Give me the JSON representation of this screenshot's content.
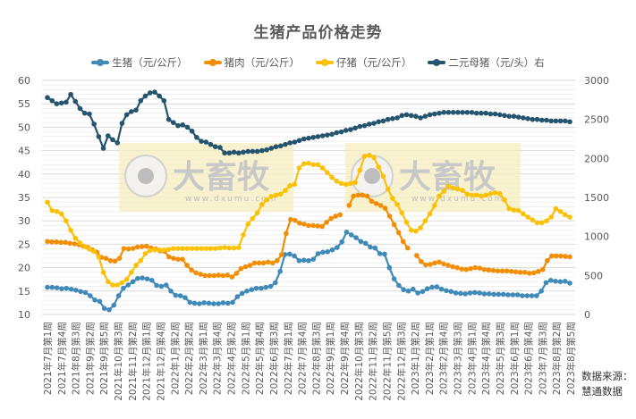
{
  "chart_data": {
    "type": "line",
    "title": "生猪产品价格走势",
    "xlabel": "",
    "ylabel": "",
    "y2label": "",
    "ylim": [
      10,
      60
    ],
    "y2lim": [
      0,
      3000
    ],
    "yticks": [
      10,
      15,
      20,
      25,
      30,
      35,
      40,
      45,
      50,
      55,
      60
    ],
    "y2ticks": [
      0,
      500,
      1000,
      1500,
      2000,
      2500,
      3000
    ],
    "grid": true,
    "legend_position": "top",
    "categories": [
      "2021年7月第1周",
      "2021年7月第4周",
      "2021年8月第3周",
      "2021年9月第2周",
      "2021年9月第5周",
      "2021年10月第3周",
      "2021年11月第2周",
      "2021年12月第1周",
      "2021年12月第4周",
      "2022年1月第2周",
      "2022年2月第2周",
      "2022年3月第1周",
      "2022年3月第4周",
      "2022年4月第2周",
      "2022年5月第1周",
      "2022年5月第4周",
      "2022年6月第3周",
      "2022年7月第1周",
      "2022年7月第4周",
      "2022年8月第3周",
      "2022年9月第1周",
      "2022年9月第4周",
      "2022年10月第3周",
      "2022年11月第2周",
      "2022年11月第5周",
      "2022年12月第3周",
      "2023年1月第2周",
      "2023年2月第1周",
      "2023年2月第4周",
      "2023年3月第3周",
      "2023年4月第1周",
      "2023年4月第4周",
      "2023年5月第3周",
      "2023年6月第1周",
      "2023年6月第4周",
      "2023年7月第3周",
      "2023年8月第2周",
      "2023年8月第5周"
    ],
    "series": [
      {
        "name": "生猪（元/公斤）",
        "axis": "left",
        "color": "#3f8ab8",
        "values": [
          15.8,
          15.8,
          15.7,
          15.5,
          15.6,
          15.4,
          15.2,
          14.9,
          14.7,
          14.0,
          13.1,
          12.8,
          11.3,
          11.0,
          12.0,
          14.0,
          15.6,
          16.3,
          17.0,
          17.7,
          17.8,
          17.6,
          17.3,
          16.2,
          16.0,
          16.3,
          15.0,
          14.1,
          14.0,
          13.6,
          12.6,
          12.4,
          12.3,
          12.5,
          12.4,
          12.3,
          12.3,
          12.5,
          12.4,
          12.6,
          13.8,
          14.5,
          15.0,
          15.3,
          15.6,
          15.6,
          15.8,
          16.0,
          16.8,
          19.2,
          22.8,
          22.9,
          22.5,
          21.5,
          21.6,
          21.5,
          21.8,
          23.0,
          23.3,
          23.4,
          23.8,
          24.3,
          25.5,
          27.6,
          27.0,
          26.4,
          25.6,
          25.2,
          24.4,
          24.2,
          23.0,
          22.9,
          20.0,
          17.6,
          16.2,
          15.3,
          15.0,
          15.4,
          14.6,
          14.9,
          15.5,
          15.8,
          15.9,
          15.4,
          15.1,
          14.9,
          14.6,
          14.5,
          14.4,
          14.6,
          14.7,
          14.6,
          14.4,
          14.4,
          14.3,
          14.3,
          14.3,
          14.2,
          14.2,
          14.2,
          14.0,
          14.0,
          14.0,
          14.0,
          15.0,
          16.8,
          17.3,
          17.1,
          17.0,
          17.1,
          16.7
        ]
      },
      {
        "name": "猪肉（元/公斤）",
        "axis": "left",
        "color": "#f28e05",
        "values": [
          25.6,
          25.5,
          25.5,
          25.4,
          25.4,
          25.2,
          25.1,
          24.9,
          24.6,
          24.3,
          23.8,
          23.3,
          22.2,
          22.0,
          21.5,
          21.4,
          22.0,
          24.1,
          24.0,
          24.1,
          24.4,
          24.5,
          24.6,
          24.2,
          24.0,
          23.6,
          23.5,
          22.3,
          22.0,
          21.8,
          21.8,
          20.5,
          19.5,
          18.9,
          18.6,
          18.3,
          18.3,
          18.3,
          18.4,
          18.3,
          18.4,
          18.0,
          18.8,
          19.8,
          20.2,
          20.5,
          21.0,
          21.0,
          21.0,
          21.2,
          21.0,
          21.5,
          22.8,
          27.3,
          30.3,
          30.1,
          29.5,
          29.3,
          29.0,
          29.0,
          28.9,
          28.8,
          29.7,
          30.5,
          31.0,
          31.3,
          null,
          33.3,
          35.3,
          35.5,
          35.5,
          35.3,
          34.2,
          33.7,
          33.3,
          32.7,
          31.0,
          29.2,
          27.5,
          25.6,
          24.2,
          null,
          22.6,
          21.3,
          20.6,
          20.7,
          21.0,
          21.2,
          20.8,
          20.5,
          20.2,
          20.0,
          19.7,
          19.6,
          19.8,
          20.0,
          19.9,
          19.6,
          19.5,
          19.4,
          19.3,
          19.3,
          19.3,
          19.2,
          19.1,
          19.0,
          19.0,
          18.8,
          18.9,
          19.2,
          19.6,
          21.5,
          22.5,
          22.5,
          22.5,
          22.4,
          22.3
        ]
      },
      {
        "name": "仔猪（元/公斤）",
        "axis": "left",
        "color": "#fac107",
        "values": [
          34.0,
          32.2,
          32.0,
          31.5,
          30.0,
          28.0,
          26.3,
          25.3,
          24.5,
          24.0,
          23.5,
          22.3,
          19.0,
          17.0,
          16.3,
          16.3,
          16.8,
          17.5,
          19.0,
          20.5,
          21.5,
          23.0,
          23.7,
          23.8,
          23.8,
          23.8,
          23.9,
          24.1,
          24.1,
          24.1,
          24.1,
          24.1,
          24.1,
          24.1,
          24.1,
          24.1,
          24.1,
          24.2,
          24.3,
          24.2,
          24.2,
          24.3,
          27.0,
          29.3,
          30.5,
          31.7,
          33.5,
          34.5,
          35.2,
          35.5,
          35.7,
          36.5,
          37.5,
          37.8,
          41.3,
          42.2,
          42.3,
          42.0,
          42.0,
          41.3,
          40.3,
          39.3,
          38.5,
          38.0,
          37.8,
          38.0,
          38.2,
          40.8,
          43.8,
          44.0,
          43.5,
          41.5,
          39.5,
          36.8,
          34.8,
          33.5,
          31.7,
          29.7,
          28.0,
          27.8,
          28.5,
          30.0,
          31.5,
          33.3,
          35.3,
          36.3,
          37.4,
          37.0,
          36.8,
          36.5,
          35.7,
          35.5,
          35.5,
          35.3,
          35.5,
          35.8,
          36.0,
          35.8,
          34.5,
          32.6,
          32.3,
          32.2,
          31.5,
          30.8,
          30.2,
          29.6,
          29.6,
          30.0,
          30.8,
          32.6,
          32.0,
          31.3,
          30.8
        ]
      },
      {
        "name": "二元母猪（元/头）右",
        "axis": "right",
        "color": "#24546e",
        "values": [
          2780,
          2740,
          2700,
          2710,
          2720,
          2820,
          2730,
          2640,
          2580,
          2570,
          2440,
          2280,
          2130,
          2290,
          2240,
          2200,
          2450,
          2560,
          2600,
          2620,
          2740,
          2800,
          2840,
          2850,
          2800,
          2740,
          2500,
          2460,
          2420,
          2430,
          2400,
          2350,
          2270,
          2220,
          2210,
          2180,
          2150,
          2140,
          2070,
          2070,
          2080,
          2070,
          2080,
          2090,
          2090,
          2090,
          2100,
          2110,
          2130,
          2150,
          2160,
          2180,
          2200,
          2210,
          2230,
          2250,
          2260,
          2270,
          2280,
          2290,
          2300,
          2310,
          2330,
          2340,
          2360,
          2370,
          2390,
          2410,
          2420,
          2440,
          2450,
          2470,
          2480,
          2500,
          2510,
          2520,
          2550,
          2560,
          2550,
          2540,
          2520,
          2540,
          2560,
          2570,
          2580,
          2590,
          2590,
          2590,
          2590,
          2590,
          2590,
          2590,
          2580,
          2580,
          2580,
          2570,
          2570,
          2560,
          2550,
          2540,
          2540,
          2530,
          2520,
          2510,
          2500,
          2500,
          2490,
          2490,
          2480,
          2480,
          2480,
          2480,
          2470
        ]
      }
    ]
  },
  "legend": {
    "items": [
      {
        "label": "生猪（元/公斤）",
        "color": "#3f8ab8"
      },
      {
        "label": "猪肉（元/公斤）",
        "color": "#f28e05"
      },
      {
        "label": "仔猪（元/公斤）",
        "color": "#fac107"
      },
      {
        "label": "二元母猪（元/头）右",
        "color": "#24546e"
      }
    ]
  },
  "watermark": {
    "text": "大畜牧",
    "url_text": "www.dxumu.com"
  },
  "source": {
    "line1": "数据来源：",
    "line2": "慧通数据"
  }
}
